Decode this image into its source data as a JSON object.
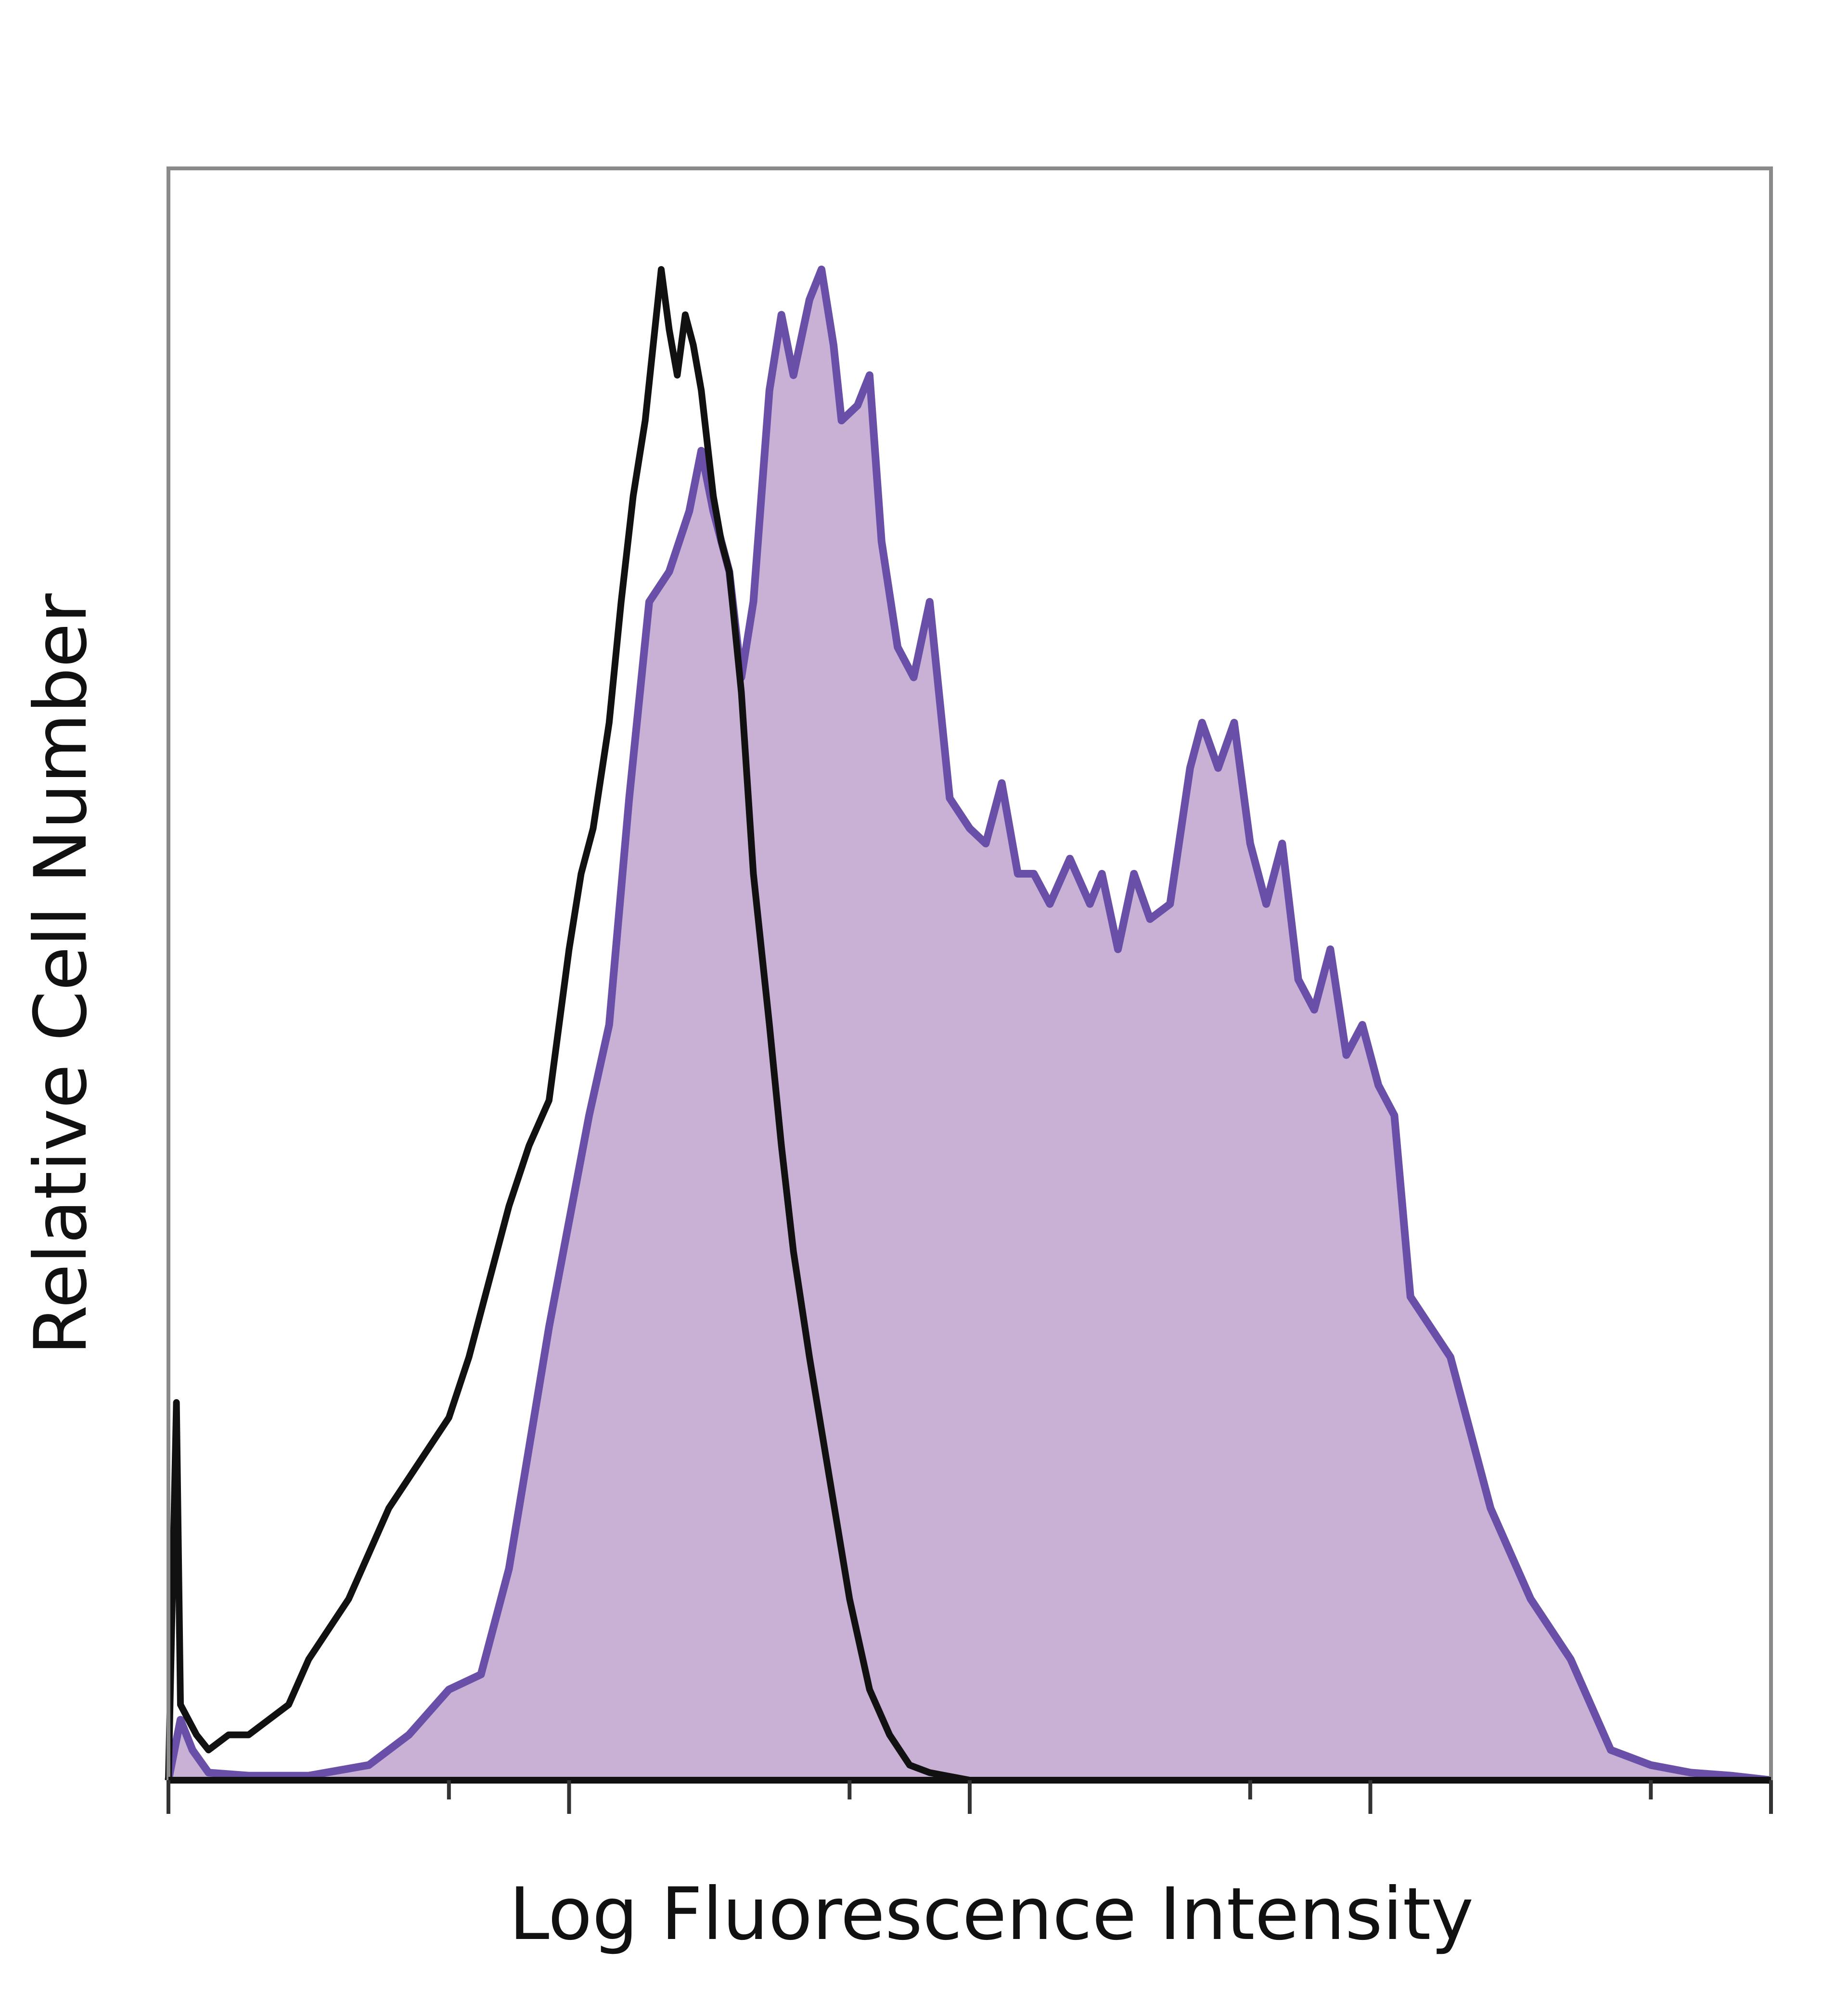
{
  "chart_data": {
    "type": "area",
    "title": "",
    "xlabel": "Log Fluorescence Intensity",
    "ylabel": "Relative Cell Number",
    "xlim": [
      0,
      4
    ],
    "ylim": [
      0,
      1.0
    ],
    "grid": false,
    "legend": "none",
    "x_tick_values": [
      0,
      0.7,
      1.0,
      1.7,
      2.0,
      2.7,
      3.0,
      3.7,
      4.0
    ],
    "x_tick_major": [
      0,
      1,
      2,
      3,
      4
    ],
    "series": [
      {
        "style": "filled",
        "stroke_color": "#6a4fa8",
        "fill_color": "#c9b1d6",
        "x": [
          0.0,
          0.03,
          0.06,
          0.1,
          0.2,
          0.35,
          0.5,
          0.6,
          0.7,
          0.78,
          0.85,
          0.9,
          0.95,
          1.0,
          1.05,
          1.1,
          1.15,
          1.2,
          1.25,
          1.3,
          1.33,
          1.36,
          1.4,
          1.43,
          1.46,
          1.5,
          1.53,
          1.56,
          1.6,
          1.63,
          1.66,
          1.68,
          1.72,
          1.75,
          1.78,
          1.82,
          1.86,
          1.9,
          1.95,
          2.0,
          2.04,
          2.08,
          2.12,
          2.16,
          2.2,
          2.25,
          2.3,
          2.33,
          2.37,
          2.41,
          2.45,
          2.5,
          2.55,
          2.58,
          2.62,
          2.66,
          2.7,
          2.74,
          2.78,
          2.82,
          2.86,
          2.9,
          2.94,
          2.98,
          3.02,
          3.06,
          3.1,
          3.15,
          3.2,
          3.3,
          3.4,
          3.5,
          3.55,
          3.6,
          3.65,
          3.7,
          3.8,
          3.9,
          4.0
        ],
        "y": [
          0.0,
          0.04,
          0.02,
          0.005,
          0.003,
          0.003,
          0.01,
          0.03,
          0.06,
          0.07,
          0.14,
          0.22,
          0.3,
          0.37,
          0.44,
          0.5,
          0.65,
          0.78,
          0.8,
          0.84,
          0.88,
          0.84,
          0.8,
          0.73,
          0.78,
          0.92,
          0.97,
          0.93,
          0.98,
          1.0,
          0.95,
          0.9,
          0.91,
          0.93,
          0.82,
          0.75,
          0.73,
          0.78,
          0.65,
          0.63,
          0.62,
          0.66,
          0.6,
          0.6,
          0.58,
          0.61,
          0.58,
          0.6,
          0.55,
          0.6,
          0.57,
          0.58,
          0.67,
          0.7,
          0.67,
          0.7,
          0.62,
          0.58,
          0.62,
          0.53,
          0.51,
          0.55,
          0.48,
          0.5,
          0.46,
          0.44,
          0.32,
          0.3,
          0.28,
          0.18,
          0.12,
          0.08,
          0.05,
          0.02,
          0.015,
          0.01,
          0.005,
          0.003,
          0.0
        ]
      },
      {
        "style": "line",
        "stroke_color": "#111111",
        "x": [
          0.0,
          0.02,
          0.03,
          0.05,
          0.07,
          0.1,
          0.15,
          0.2,
          0.25,
          0.3,
          0.35,
          0.4,
          0.45,
          0.5,
          0.55,
          0.6,
          0.65,
          0.7,
          0.75,
          0.8,
          0.85,
          0.9,
          0.95,
          1.0,
          1.03,
          1.06,
          1.1,
          1.13,
          1.16,
          1.19,
          1.21,
          1.23,
          1.25,
          1.27,
          1.29,
          1.31,
          1.33,
          1.36,
          1.38,
          1.4,
          1.43,
          1.46,
          1.5,
          1.53,
          1.56,
          1.6,
          1.65,
          1.7,
          1.75,
          1.8,
          1.85,
          1.9,
          2.0,
          2.5,
          3.0,
          3.5,
          4.0
        ],
        "y": [
          0.0,
          0.25,
          0.05,
          0.04,
          0.03,
          0.02,
          0.03,
          0.03,
          0.04,
          0.05,
          0.08,
          0.1,
          0.12,
          0.15,
          0.18,
          0.2,
          0.22,
          0.24,
          0.28,
          0.33,
          0.38,
          0.42,
          0.45,
          0.55,
          0.6,
          0.63,
          0.7,
          0.78,
          0.85,
          0.9,
          0.95,
          1.0,
          0.96,
          0.93,
          0.97,
          0.95,
          0.92,
          0.85,
          0.82,
          0.8,
          0.72,
          0.6,
          0.5,
          0.42,
          0.35,
          0.28,
          0.2,
          0.12,
          0.06,
          0.03,
          0.01,
          0.005,
          0.0,
          0.0,
          0.0,
          0.0,
          0.0
        ]
      }
    ]
  }
}
